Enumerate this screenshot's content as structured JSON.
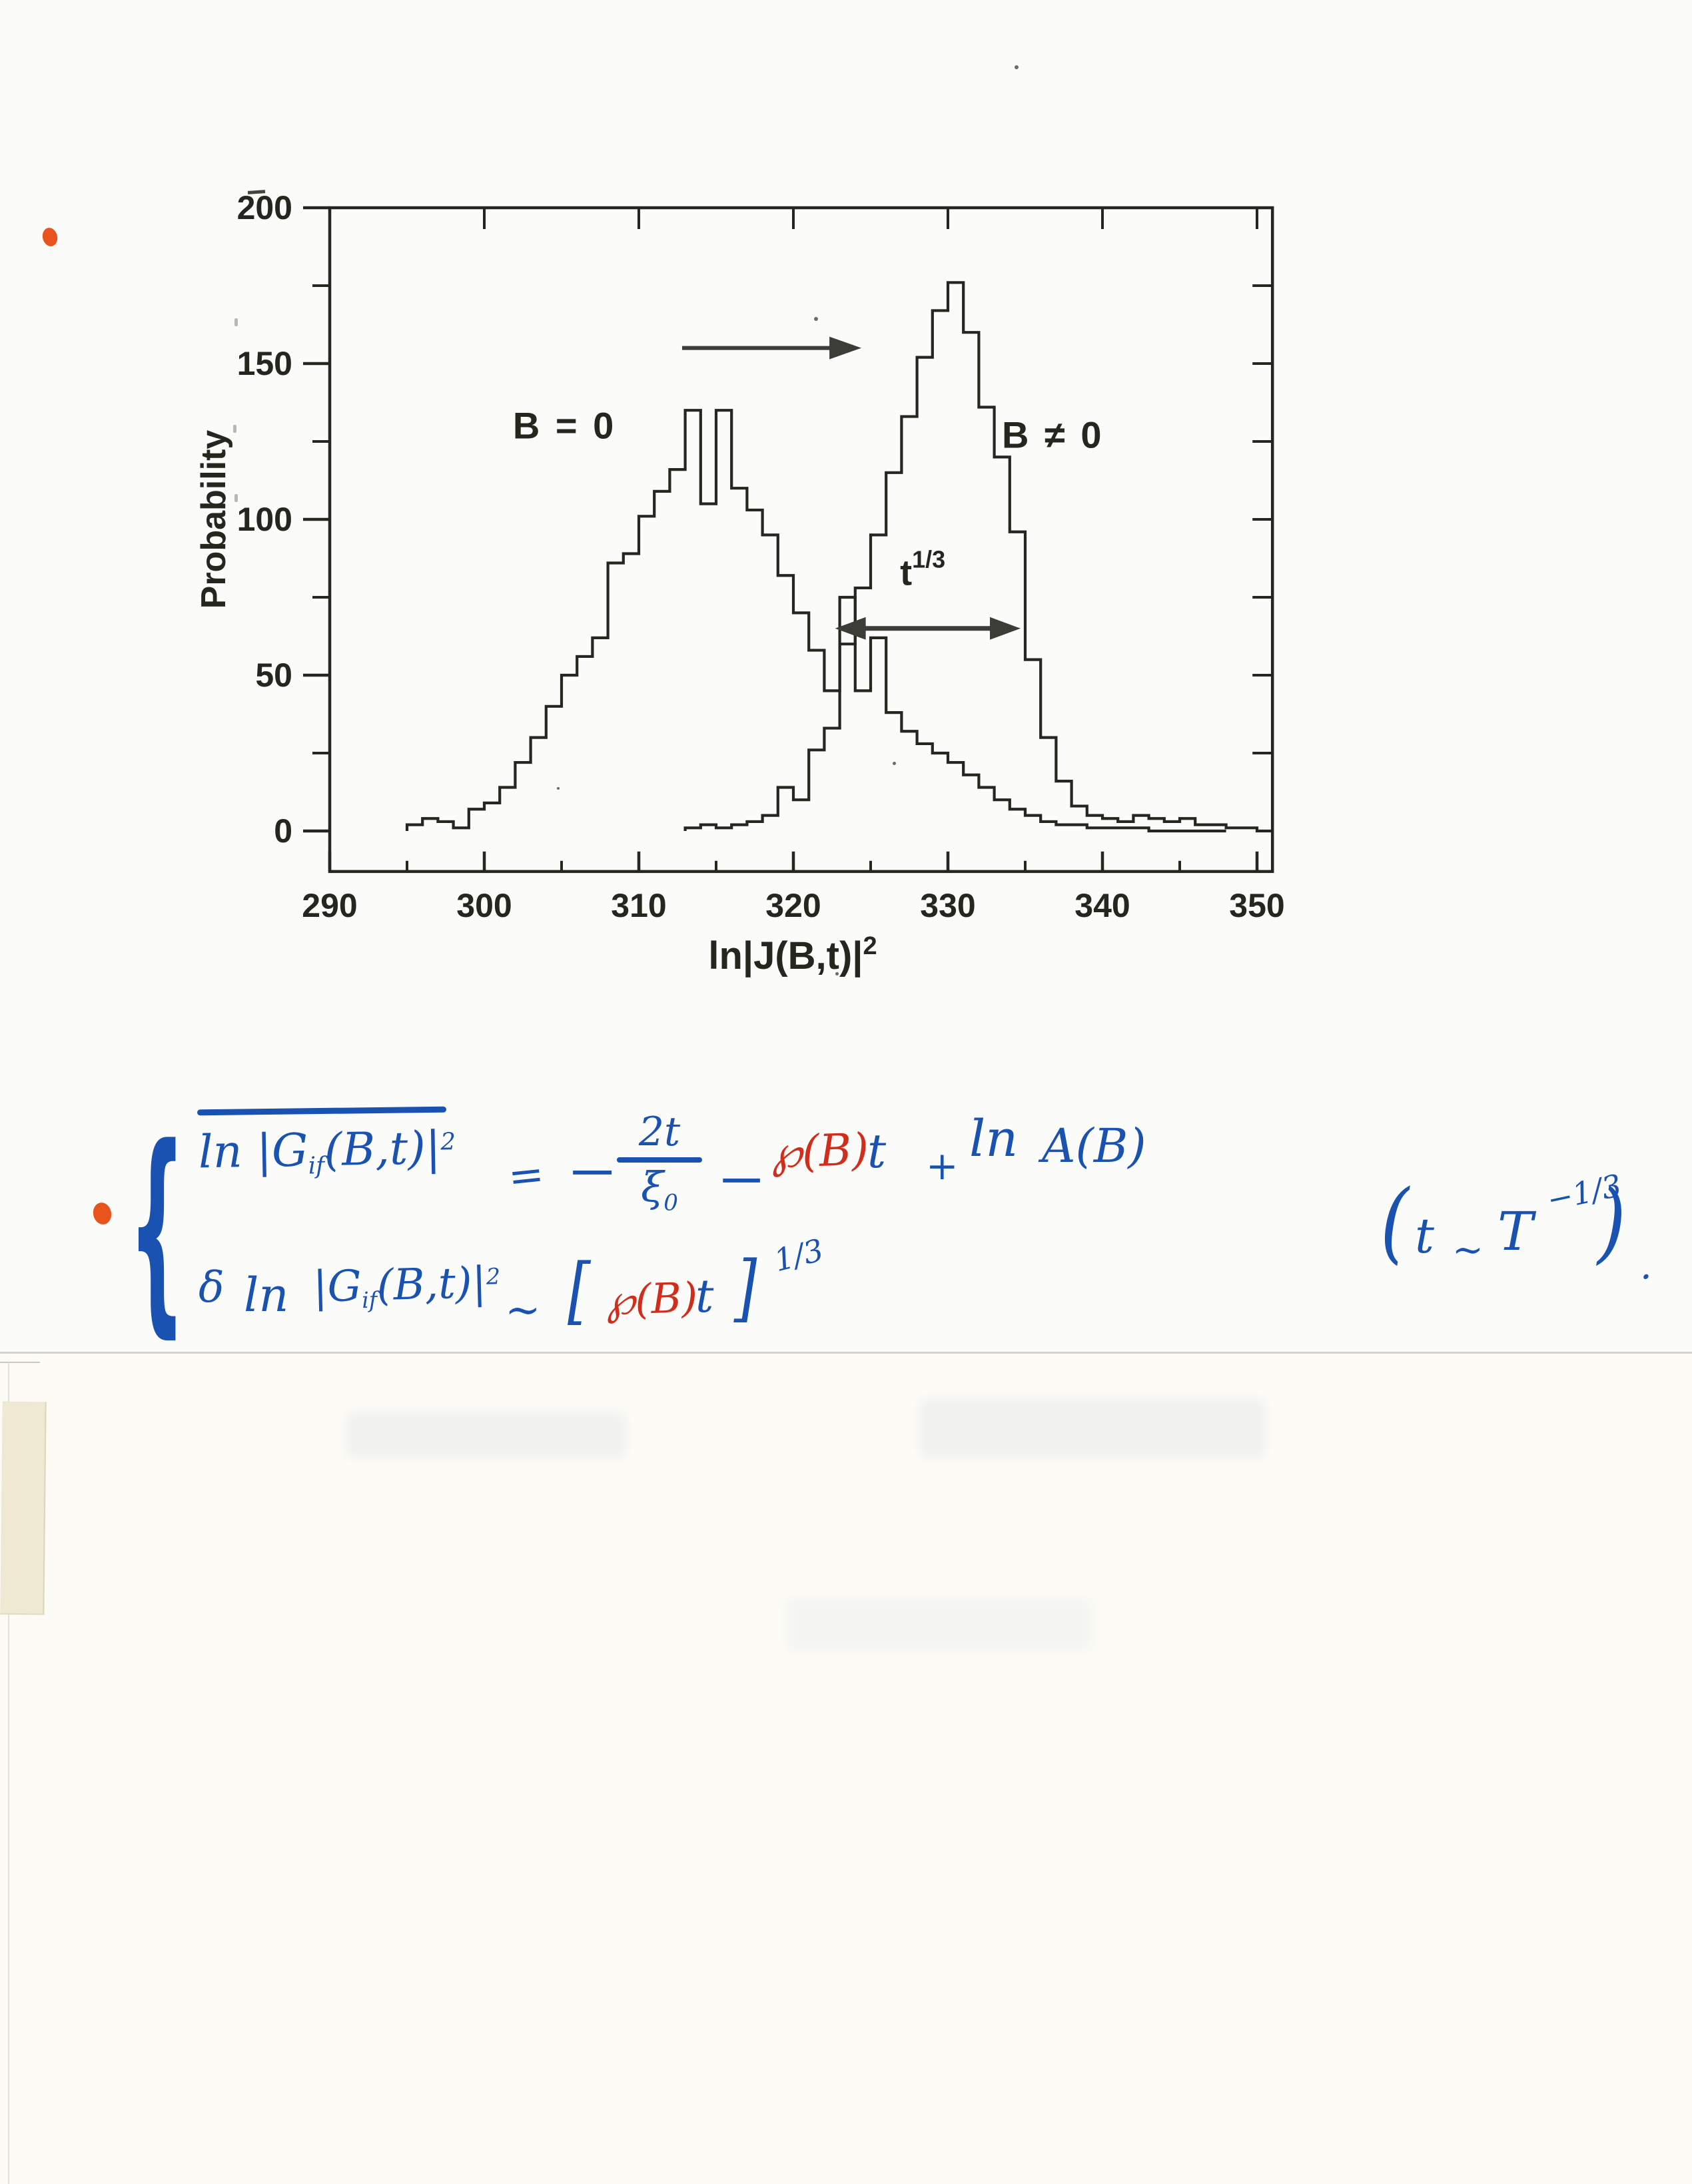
{
  "colors": {
    "blue_ink": "#1a52b2",
    "red_ink": "#d22d1c",
    "orange_dot": "#e8541c",
    "chart_ink": "#26261f",
    "arrow_ink": "#3d3d38",
    "paper": "#fbfbf9"
  },
  "chart_data": {
    "type": "bar",
    "subtype": "step-histogram-outline",
    "title": "",
    "xlabel_base": "ln|J(B,t)|",
    "xlabel_sup": "2",
    "ylabel": "Probability",
    "xlim": [
      290,
      351
    ],
    "ylim": [
      -13,
      200
    ],
    "x_ticks": [
      290,
      300,
      310,
      320,
      330,
      340,
      350
    ],
    "x_minor_ticks": [
      295,
      305,
      315,
      325,
      335,
      345
    ],
    "x_top_ticks": [
      300,
      310,
      320,
      330,
      340,
      350
    ],
    "y_ticks": [
      0,
      50,
      100,
      150,
      200
    ],
    "y_minor_ticks": [
      25,
      75,
      125,
      175
    ],
    "y_right_ticks": [
      25,
      50,
      75,
      100,
      125,
      150,
      175
    ],
    "grid": false,
    "legend_position": "none",
    "bin_width": 1,
    "series": [
      {
        "name": "B = 0",
        "start": 295,
        "extend_to": 348,
        "label_x": 305.2,
        "label_y": 126,
        "values": [
          2,
          4,
          3,
          1,
          7,
          9,
          14,
          22,
          30,
          40,
          50,
          56,
          62,
          86,
          89,
          101,
          109,
          116,
          135,
          105,
          135,
          110,
          103,
          95,
          82,
          70,
          58,
          45,
          75,
          45,
          62,
          38,
          32,
          28,
          25,
          22,
          18,
          14,
          10,
          7,
          5,
          3,
          2,
          2,
          1,
          1,
          1,
          1,
          0,
          0,
          0
        ]
      },
      {
        "name": "B ≠ 0",
        "start": 313,
        "extend_to": 351,
        "label_x": 336.8,
        "label_y": 123,
        "values": [
          1,
          2,
          1,
          2,
          3,
          5,
          14,
          10,
          26,
          33,
          60,
          78,
          95,
          115,
          133,
          152,
          167,
          176,
          160,
          136,
          120,
          96,
          55,
          30,
          16,
          8,
          5,
          4,
          3,
          5,
          4,
          3,
          4,
          2,
          2,
          1,
          1,
          0
        ]
      }
    ],
    "annotations": {
      "shift_arrow": {
        "x1": 312.8,
        "x2": 324.4,
        "y": 155
      },
      "width_arrow": {
        "x1": 322.7,
        "x2": 334.7,
        "y": 65
      },
      "t13_base": "t",
      "t13_sup": "1/3",
      "t13_x": 326.9,
      "t13_y": 79
    }
  },
  "equations": {
    "brace": "{",
    "line1": {
      "ln": "ln",
      "g": "|G",
      "sub": "if",
      "args": "(B,t)|",
      "sup": "2",
      "eq": "=",
      "minus1": "−",
      "frac_num": "2t",
      "frac_den": "ξ",
      "frac_den_sub": "0",
      "minus2": "−",
      "pb": "℘(B)",
      "t": "t",
      "plus": "+",
      "ln2": "ln",
      "ab": "A(B)"
    },
    "line2": {
      "delta": "δ",
      "ln": "ln",
      "g": "|G",
      "sub": "if",
      "args": "(B,t)|",
      "sup": "2",
      "sim": "∼",
      "lbracket": "[",
      "pb": "℘(B)",
      "t": "t",
      "rbracket": "]",
      "sup13": "1/3"
    },
    "line3": {
      "lparen": "(",
      "t": "t",
      "sim": "∼",
      "T": "T",
      "sup": "−1/3",
      "rparen": ")",
      "period": "."
    }
  }
}
